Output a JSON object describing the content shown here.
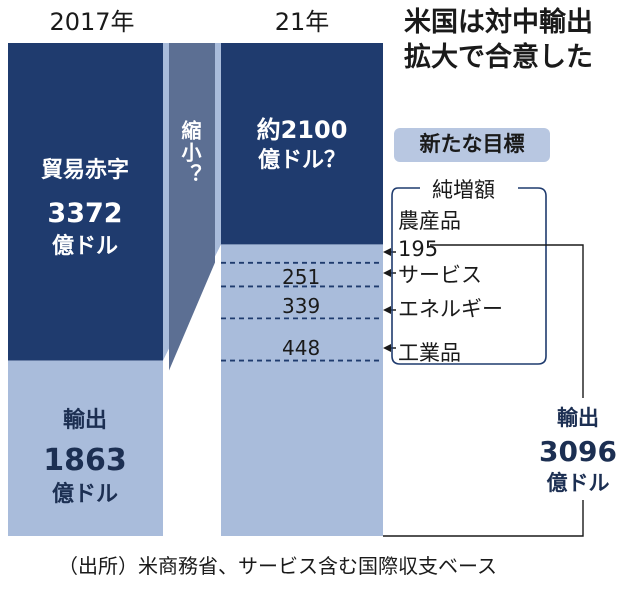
{
  "chart_data": {
    "type": "bar",
    "title": "米国は対中輸出拡大で合意した",
    "categories": [
      "2017年",
      "21年"
    ],
    "unit": "億ドル",
    "series": [
      {
        "name": "貿易赤字",
        "values": [
          3372,
          2100
        ]
      },
      {
        "name": "輸出",
        "values": [
          1863,
          3096
        ]
      }
    ],
    "bar_labels": {
      "deficit_2017": [
        "貿易赤字",
        "3372",
        "億ドル"
      ],
      "export_2017": [
        "輸出",
        "1863",
        "億ドル"
      ],
      "deficit_2021": [
        "約2100",
        "億ドル？"
      ],
      "export_2021": [
        "輸出",
        "3096",
        "億ドル"
      ]
    },
    "shrink_label": "縮小？",
    "target": {
      "title": "新たな目標",
      "subtitle": "純増額",
      "items": [
        {
          "name": "農産品",
          "value": 195
        },
        {
          "name": "サービス",
          "value": 251
        },
        {
          "name": "エネルギー",
          "value": 339
        },
        {
          "name": "工業品",
          "value": 448
        }
      ]
    },
    "source": "（出所）米商務省、サービス含む国際収支ベース"
  },
  "colors": {
    "dark": "#1f3b6e",
    "light": "#a9bcdb",
    "shrink": "#5c6f93",
    "badge": "#b8c7e1"
  }
}
